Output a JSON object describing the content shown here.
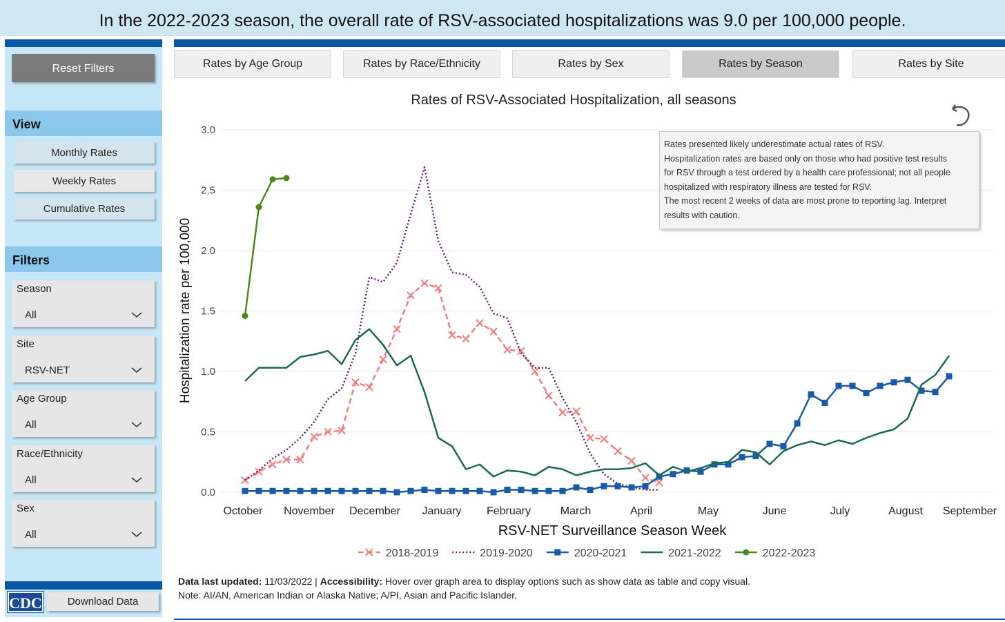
{
  "banner": "In the 2022-2023 season, the overall rate of RSV-associated hospitalizations was 9.0 per 100,000 people.",
  "sidebar": {
    "reset": "Reset Filters",
    "view_title": "View",
    "view_options": [
      "Monthly Rates",
      "Weekly Rates",
      "Cumulative Rates"
    ],
    "filters_title": "Filters",
    "filters": [
      {
        "label": "Season",
        "value": "All"
      },
      {
        "label": "Site",
        "value": "RSV-NET"
      },
      {
        "label": "Age Group",
        "value": "All"
      },
      {
        "label": "Race/Ethnicity",
        "value": "All"
      },
      {
        "label": "Sex",
        "value": "All"
      }
    ],
    "logo": "CDC",
    "download": "Download Data"
  },
  "tabs": [
    "Rates by Age Group",
    "Rates by Race/Ethnicity",
    "Rates by Sex",
    "Rates by Season",
    "Rates by Site"
  ],
  "tooltip": [
    "Rates presented likely underestimate actual rates of RSV.",
    "Hospitalization rates are based only on those who had positive test results",
    "for RSV through a test ordered by a health care professional; not all people",
    "hospitalized with respiratory illness are tested for RSV.",
    "The most recent 2 weeks of data are most prone to reporting lag. Interpret",
    "results with caution."
  ],
  "footer": {
    "updated_label": "Data last updated:",
    "updated": "11/03/2022",
    "separator": "|",
    "accessibility_label": "Accessibility:",
    "accessibility": "Hover over graph area to display options such as show data as table and copy visual.",
    "note": "Note: AI/AN, American Indian or Alaska Native; A/PI, Asian and Pacific Islander."
  },
  "chart_data": {
    "type": "line",
    "title": "Rates of RSV-Associated Hospitalization, all seasons",
    "x_label": "RSV-NET Surveillance Season Week",
    "y_label": "Hospitalization rate per 100,000",
    "x": [
      1,
      2,
      3,
      4,
      5,
      6,
      7,
      8,
      9,
      10,
      11,
      12,
      13,
      14,
      15,
      16,
      17,
      18,
      19,
      20,
      21,
      22,
      23,
      24,
      25,
      26,
      27,
      28,
      29,
      30,
      31,
      32,
      33,
      34,
      35,
      36,
      37,
      38,
      39,
      40,
      41,
      42,
      43,
      44,
      45,
      46,
      47,
      48,
      49,
      50,
      51,
      52
    ],
    "xlim": [
      0.15,
      54.25
    ],
    "xticks": [
      {
        "value": 0.85,
        "label": "October"
      },
      {
        "value": 5.65,
        "label": "November"
      },
      {
        "value": 10.4,
        "label": "December"
      },
      {
        "value": 15.25,
        "label": "January"
      },
      {
        "value": 20.1,
        "label": "February"
      },
      {
        "value": 24.95,
        "label": "March"
      },
      {
        "value": 29.7,
        "label": "April"
      },
      {
        "value": 34.55,
        "label": "May"
      },
      {
        "value": 39.35,
        "label": "June"
      },
      {
        "value": 44.1,
        "label": "July"
      },
      {
        "value": 48.85,
        "label": "August"
      },
      {
        "value": 53.5,
        "label": "September"
      }
    ],
    "ylim": [
      0,
      3.0
    ],
    "yticks": [
      {
        "value": 0,
        "label": "0.0"
      },
      0.5,
      {
        "value": 1,
        "label": "1.0"
      },
      1.5,
      {
        "value": 2,
        "label": "2.0"
      },
      2.5,
      {
        "value": 3,
        "label": "3.0"
      }
    ],
    "grid": true,
    "series": [
      {
        "name": "2018-2019",
        "color": "#f08080",
        "dash": "dashed",
        "marker": "x",
        "values": [
          0.1,
          0.17,
          0.23,
          0.27,
          0.27,
          0.46,
          0.5,
          0.51,
          0.91,
          0.87,
          1.1,
          1.35,
          1.63,
          1.73,
          1.69,
          1.3,
          1.27,
          1.4,
          1.33,
          1.18,
          1.17,
          1.0,
          0.8,
          0.66,
          0.67,
          0.45,
          0.44,
          0.34,
          0.26,
          0.12,
          0.08,
          null,
          null,
          null,
          null,
          null,
          null,
          null,
          null,
          null,
          null,
          null,
          null,
          null,
          null,
          null,
          null,
          null,
          null,
          null,
          null,
          null
        ]
      },
      {
        "name": "2019-2020",
        "color": "#6a1b6e",
        "dash": "dotted",
        "marker": "none",
        "values": [
          0.1,
          0.18,
          0.28,
          0.35,
          0.45,
          0.58,
          0.77,
          0.86,
          1.15,
          1.78,
          1.74,
          1.9,
          2.3,
          2.69,
          2.08,
          1.82,
          1.8,
          1.7,
          1.48,
          1.44,
          1.15,
          1.03,
          1.03,
          0.78,
          0.58,
          0.32,
          0.15,
          0.07,
          0.04,
          0.02,
          0.02,
          null,
          null,
          null,
          null,
          null,
          null,
          null,
          null,
          null,
          null,
          null,
          null,
          null,
          null,
          null,
          null,
          null,
          null,
          null,
          null,
          null
        ]
      },
      {
        "name": "2020-2021",
        "color": "#1a5ba6",
        "dash": "solid",
        "marker": "square",
        "values": [
          0.01,
          0.01,
          0.01,
          0.01,
          0.01,
          0.01,
          0.01,
          0.01,
          0.01,
          0.01,
          0.01,
          0.0,
          0.01,
          0.02,
          0.01,
          0.01,
          0.01,
          0.01,
          0.0,
          0.02,
          0.02,
          0.01,
          0.01,
          0.01,
          0.04,
          0.02,
          0.05,
          0.05,
          0.04,
          0.05,
          0.13,
          0.15,
          0.18,
          0.17,
          0.23,
          0.23,
          0.29,
          0.3,
          0.4,
          0.38,
          0.57,
          0.81,
          0.74,
          0.88,
          0.88,
          0.82,
          0.88,
          0.91,
          0.93,
          0.84,
          0.83,
          0.96
        ]
      },
      {
        "name": "2021-2022",
        "color": "#1a6b52",
        "dash": "solid",
        "marker": "none",
        "values": [
          0.92,
          1.03,
          1.03,
          1.03,
          1.12,
          1.14,
          1.17,
          1.06,
          1.26,
          1.35,
          1.22,
          1.05,
          1.13,
          0.83,
          0.45,
          0.38,
          0.19,
          0.23,
          0.13,
          0.18,
          0.17,
          0.14,
          0.21,
          0.19,
          0.14,
          0.17,
          0.19,
          0.19,
          0.2,
          0.24,
          0.14,
          0.21,
          0.17,
          0.2,
          0.24,
          0.25,
          0.35,
          0.33,
          0.23,
          0.34,
          0.39,
          0.42,
          0.39,
          0.43,
          0.4,
          0.45,
          0.49,
          0.52,
          0.61,
          0.89,
          0.97,
          1.13
        ]
      },
      {
        "name": "2022-2023",
        "color": "#4a8a1a",
        "dash": "solid",
        "marker": "circle",
        "values": [
          1.46,
          2.36,
          2.59,
          2.6,
          null,
          null,
          null,
          null,
          null,
          null,
          null,
          null,
          null,
          null,
          null,
          null,
          null,
          null,
          null,
          null,
          null,
          null,
          null,
          null,
          null,
          null,
          null,
          null,
          null,
          null,
          null,
          null,
          null,
          null,
          null,
          null,
          null,
          null,
          null,
          null,
          null,
          null,
          null,
          null,
          null,
          null,
          null,
          null,
          null,
          null,
          null,
          null
        ]
      }
    ]
  }
}
